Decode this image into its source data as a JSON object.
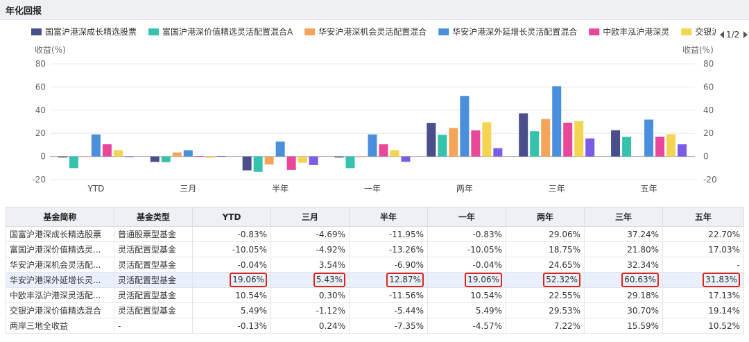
{
  "header": {
    "title": "年化回报"
  },
  "chart_data": {
    "type": "bar",
    "categories": [
      "YTD",
      "三月",
      "半年",
      "一年",
      "两年",
      "三年",
      "五年"
    ],
    "ylabel_left": "收益(%)",
    "ylabel_right": "收益(%)",
    "ylim": [
      -20,
      80
    ],
    "yticks": [
      -20,
      0,
      20,
      40,
      60,
      80
    ],
    "legend_position": "top",
    "legend_pager": "1/2",
    "series": [
      {
        "name": "国富沪港深成长精选股票",
        "color": "#4a4f8c",
        "values": [
          -0.83,
          -4.69,
          -11.95,
          -0.83,
          29.06,
          37.24,
          22.7
        ]
      },
      {
        "name": "富国沪港深价值精选灵活配置混合A",
        "color": "#36c3ae",
        "values": [
          -10.05,
          -4.92,
          -13.26,
          -10.05,
          18.75,
          21.8,
          17.03
        ]
      },
      {
        "name": "华安沪港深机会灵活配置混合",
        "color": "#f5a55a",
        "values": [
          -0.04,
          3.54,
          -6.9,
          -0.04,
          24.65,
          32.34,
          null
        ]
      },
      {
        "name": "华安沪港深外延增长灵活配置混合",
        "color": "#4a8fdc",
        "values": [
          19.06,
          5.43,
          12.87,
          19.06,
          52.32,
          60.63,
          31.83
        ]
      },
      {
        "name": "中欧丰泓沪港深灵",
        "color": "#e8479a",
        "values": [
          10.54,
          0.3,
          -11.56,
          10.54,
          22.55,
          29.18,
          17.13
        ]
      },
      {
        "name": "交银沪港深价值精选混合",
        "color": "#f4d552",
        "values": [
          5.49,
          -1.12,
          -5.44,
          5.49,
          29.53,
          30.7,
          19.14
        ]
      },
      {
        "name": "两岸三地全收益",
        "color": "#7b5ce6",
        "values": [
          -0.13,
          0.24,
          -7.35,
          -4.57,
          7.22,
          15.59,
          10.52
        ]
      }
    ]
  },
  "table": {
    "headers": [
      "基金简称",
      "基金类型",
      "YTD",
      "三月",
      "半年",
      "一年",
      "两年",
      "三年",
      "五年"
    ],
    "rows": [
      {
        "name": "国富沪港深成长精选股票",
        "type": "普通股票型基金",
        "values": [
          "-0.83%",
          "-4.69%",
          "-11.95%",
          "-0.83%",
          "29.06%",
          "37.24%",
          "22.70%"
        ]
      },
      {
        "name": "富国沪港深价值精选灵...",
        "type": "灵活配置型基金",
        "values": [
          "-10.05%",
          "-4.92%",
          "-13.26%",
          "-10.05%",
          "18.75%",
          "21.80%",
          "17.03%"
        ]
      },
      {
        "name": "华安沪港深机会灵活配...",
        "type": "灵活配置型基金",
        "values": [
          "-0.04%",
          "3.54%",
          "-6.90%",
          "-0.04%",
          "24.65%",
          "32.34%",
          "-"
        ]
      },
      {
        "name": "华安沪港深外延增长灵...",
        "type": "灵活配置型基金",
        "values": [
          "19.06%",
          "5.43%",
          "12.87%",
          "19.06%",
          "52.32%",
          "60.63%",
          "31.83%"
        ],
        "highlighted": true
      },
      {
        "name": "中欧丰泓沪港深灵活配...",
        "type": "灵活配置型基金",
        "values": [
          "10.54%",
          "0.30%",
          "-11.56%",
          "10.54%",
          "22.55%",
          "29.18%",
          "17.13%"
        ]
      },
      {
        "name": "交银沪港深价值精选混合",
        "type": "灵活配置型基金",
        "values": [
          "5.49%",
          "-1.12%",
          "-5.44%",
          "5.49%",
          "29.53%",
          "30.70%",
          "19.14%"
        ]
      },
      {
        "name": "两岸三地全收益",
        "type": "-",
        "values": [
          "-0.13%",
          "0.24%",
          "-7.35%",
          "-4.57%",
          "7.22%",
          "15.59%",
          "10.52%"
        ]
      }
    ]
  }
}
